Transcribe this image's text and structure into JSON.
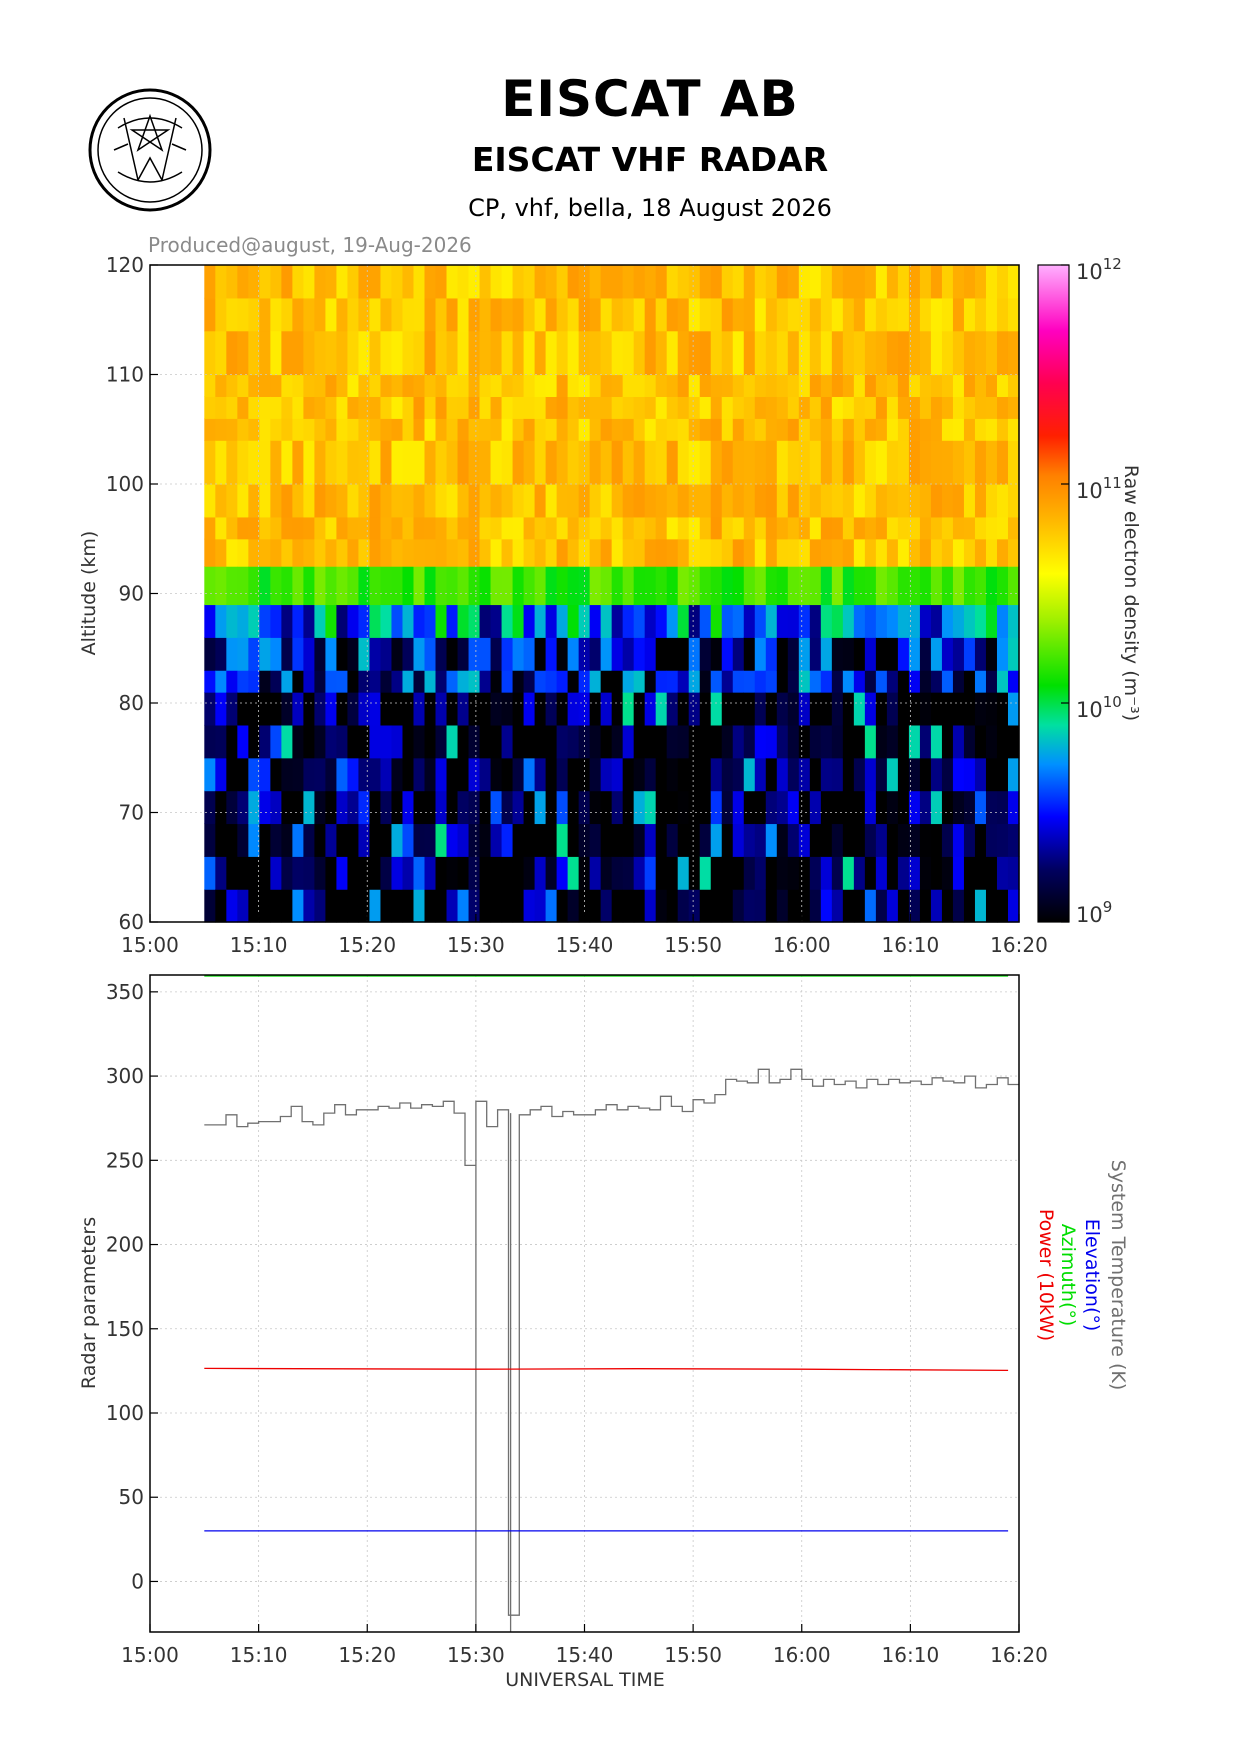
{
  "header": {
    "title": "EISCAT AB",
    "subtitle": "EISCAT VHF RADAR",
    "info": "CP, vhf, bella, 18 August 2026",
    "produced": "Produced@august, 19-Aug-2026"
  },
  "colors": {
    "system_temperature": "#707070",
    "elevation": "#0000ee",
    "azimuth": "#00dd00",
    "power": "#ee0000",
    "grid": "#b8b8b8"
  },
  "chart_data": [
    {
      "type": "heatmap",
      "ylabel": "Altitude (km)",
      "colorbar_label": "Raw electron density (m⁻³)",
      "x_ticks": [
        "15:00",
        "15:10",
        "15:20",
        "15:30",
        "15:40",
        "15:50",
        "16:00",
        "16:10",
        "16:20"
      ],
      "y_ticks": [
        "60",
        "70",
        "80",
        "90",
        "100",
        "110",
        "120"
      ],
      "xlim": [
        "15:00",
        "16:20"
      ],
      "ylim": [
        60,
        120
      ],
      "colorbar_ticks": [
        "10^9",
        "10^10",
        "10^11",
        "10^12"
      ],
      "clim_log10": [
        9,
        12
      ],
      "data_time_range": [
        "15:05",
        "16:19"
      ],
      "altitude_profile_log10_density": [
        {
          "alt": [
            92.5,
            120
          ],
          "value": 10.8,
          "note": "orange/yellow E-region"
        },
        {
          "alt": [
            89,
            92.5
          ],
          "value": 10.2
        },
        {
          "alt": [
            86,
            89
          ],
          "value": 9.7
        },
        {
          "alt": [
            81,
            86
          ],
          "value": 9.4
        },
        {
          "alt": [
            60,
            81
          ],
          "value": 9.0
        }
      ]
    },
    {
      "type": "line",
      "xlabel": "UNIVERSAL TIME",
      "ylabel": "Radar parameters",
      "x_ticks": [
        "15:00",
        "15:10",
        "15:20",
        "15:30",
        "15:40",
        "15:50",
        "16:00",
        "16:10",
        "16:20"
      ],
      "y_ticks": [
        "0",
        "50",
        "100",
        "150",
        "200",
        "250",
        "300",
        "350"
      ],
      "xlim": [
        "15:00",
        "16:20"
      ],
      "ylim": [
        -30,
        360
      ],
      "series": [
        {
          "name": "System Temperature (K)",
          "color": "#707070",
          "x": [
            "15:05",
            "15:06",
            "15:07",
            "15:08",
            "15:09",
            "15:10",
            "15:11",
            "15:12",
            "15:13",
            "15:14",
            "15:15",
            "15:16",
            "15:17",
            "15:18",
            "15:19",
            "15:20",
            "15:21",
            "15:22",
            "15:23",
            "15:24",
            "15:25",
            "15:26",
            "15:27",
            "15:28",
            "15:29",
            "15:30",
            "15:31",
            "15:32",
            "15:33",
            "15:34",
            "15:35",
            "15:36",
            "15:37",
            "15:38",
            "15:39",
            "15:40",
            "15:41",
            "15:42",
            "15:43",
            "15:44",
            "15:45",
            "15:46",
            "15:47",
            "15:48",
            "15:49",
            "15:50",
            "15:51",
            "15:52",
            "15:53",
            "15:54",
            "15:55",
            "15:56",
            "15:57",
            "15:58",
            "15:59",
            "16:00",
            "16:01",
            "16:02",
            "16:03",
            "16:04",
            "16:05",
            "16:06",
            "16:07",
            "16:08",
            "16:09",
            "16:10",
            "16:11",
            "16:12",
            "16:13",
            "16:14",
            "16:15",
            "16:16",
            "16:17",
            "16:18",
            "16:19"
          ],
          "values": [
            271,
            271,
            277,
            270,
            272,
            273,
            273,
            276,
            282,
            273,
            271,
            278,
            283,
            277,
            280,
            280,
            282,
            281,
            284,
            281,
            283,
            282,
            285,
            278,
            247,
            285,
            270,
            280,
            -20,
            277,
            280,
            282,
            276,
            279,
            277,
            277,
            280,
            283,
            280,
            282,
            281,
            280,
            288,
            282,
            279,
            286,
            284,
            289,
            298,
            297,
            296,
            304,
            296,
            298,
            304,
            298,
            294,
            298,
            295,
            297,
            293,
            298,
            295,
            298,
            296,
            297,
            295,
            299,
            297,
            296,
            300,
            293,
            295,
            299,
            295
          ]
        },
        {
          "name": "Elevation(°)",
          "color": "#0000ee",
          "x": [
            "15:05",
            "16:19"
          ],
          "values": [
            30,
            30
          ]
        },
        {
          "name": "Azimuth(°)",
          "color": "#00dd00",
          "x": [
            "15:05",
            "16:19"
          ],
          "values": [
            366,
            366
          ]
        },
        {
          "name": "Power (10kW)",
          "color": "#ee0000",
          "x": [
            "15:05",
            "15:30",
            "15:45",
            "16:00",
            "16:19"
          ],
          "values": [
            126.5,
            126,
            126.3,
            126,
            125.3
          ]
        }
      ]
    }
  ]
}
